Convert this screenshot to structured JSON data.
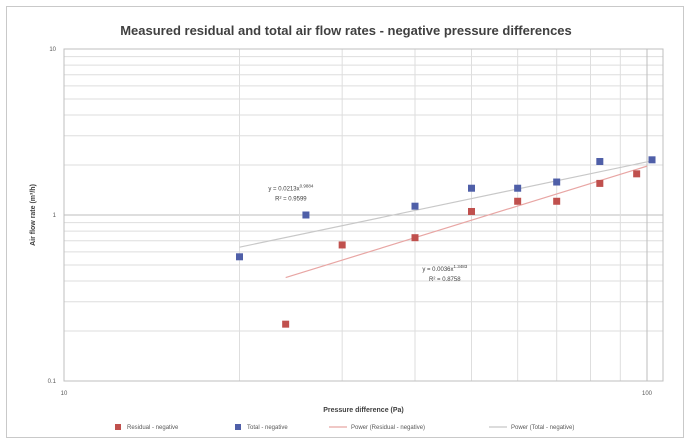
{
  "chart_data": {
    "type": "scatter",
    "title": "Measured residual and total air flow rates - negative pressure differences",
    "xlabel": "Pressure difference (Pa)",
    "ylabel": "Air flow rate (m³/h)",
    "x_scale": "log",
    "y_scale": "log",
    "xlim": [
      10,
      100
    ],
    "ylim": [
      0.1,
      10
    ],
    "x_ticks": [
      {
        "value": 10,
        "label": "10"
      },
      {
        "value": 100,
        "label": "100"
      }
    ],
    "y_ticks": [
      {
        "value": 0.1,
        "label": "0.1"
      },
      {
        "value": 1,
        "label": "1"
      },
      {
        "value": 10,
        "label": "10"
      }
    ],
    "grid": true,
    "legend_position": "bottom",
    "series": [
      {
        "name": "Residual - negative",
        "kind": "points",
        "marker": "square",
        "color": "#c0504d",
        "x": [
          24,
          30,
          40,
          50,
          60,
          70,
          83,
          96
        ],
        "y": [
          0.22,
          0.66,
          0.73,
          1.05,
          1.21,
          1.21,
          1.55,
          1.77
        ]
      },
      {
        "name": "Total - negative",
        "kind": "points",
        "marker": "square",
        "color": "#4f5fa8",
        "x": [
          20,
          26,
          40,
          50,
          60,
          70,
          83,
          102
        ],
        "y": [
          0.56,
          1.0,
          1.13,
          1.45,
          1.45,
          1.58,
          2.1,
          2.15
        ]
      },
      {
        "name": "Power (Residual - negative)",
        "kind": "trendline",
        "color": "#e8a6a4",
        "x": [
          24,
          100
        ],
        "y": [
          0.42,
          1.97
        ]
      },
      {
        "name": "Power (Total - negative)",
        "kind": "trendline",
        "color": "#c8c8c8",
        "x": [
          20,
          102
        ],
        "y": [
          0.64,
          2.12
        ]
      }
    ],
    "annotations": [
      {
        "line1": "y = 0.0213x",
        "exp": "0.9884",
        "line2": "R² = 0.9599",
        "x": 24.5,
        "y": 1.4
      },
      {
        "line1": "y = 0.0036x",
        "exp": "1.3483",
        "line2": "R² = 0.8758",
        "x": 45,
        "y": 0.46
      }
    ]
  }
}
